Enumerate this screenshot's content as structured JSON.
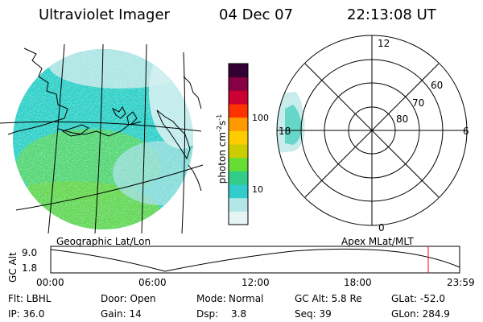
{
  "header": {
    "title": "Ultraviolet Imager",
    "date": "04 Dec 07",
    "time": "22:13:08 UT"
  },
  "map": {
    "caption": "Geographic Lat/Lon"
  },
  "colorbar": {
    "label": "photon cm",
    "label_exp1": "-2",
    "label_s": "s",
    "label_exp2": "-1",
    "ticks": [
      "100",
      "10"
    ],
    "scale": "log",
    "colors": [
      "#e6f4f4",
      "#b3e6e6",
      "#33cccc",
      "#33cc88",
      "#66dd33",
      "#cccc00",
      "#ffcc00",
      "#ff9900",
      "#ff3300",
      "#cc0033",
      "#880044",
      "#330033"
    ]
  },
  "polar": {
    "caption": "Apex MLat/MLT",
    "mlt_labels": {
      "top": "12",
      "left": "18",
      "right": "6",
      "bottom": "0"
    },
    "lat_labels": [
      "60",
      "70",
      "80"
    ]
  },
  "altitude_plot": {
    "ylabel": "GC Alt",
    "yticks": [
      "9.0",
      "1.8"
    ],
    "xticks": [
      "00:00",
      "06:00",
      "12:00",
      "18:00",
      "23:59"
    ],
    "current_marker_color": "#ff0000"
  },
  "info": {
    "flt": "Flt: LBHL",
    "door": "Door: Open",
    "mode_label": "Mode:",
    "mode_value": "Normal",
    "gc_alt": "GC Alt: 5.8 Re",
    "glat": "GLat: -52.0",
    "ip": "IP: 36.0",
    "gain": "Gain: 14",
    "dsp_label": "Dsp:",
    "dsp_value": "3.8",
    "seq": "Seq: 39",
    "glon": "GLon: 284.9"
  }
}
